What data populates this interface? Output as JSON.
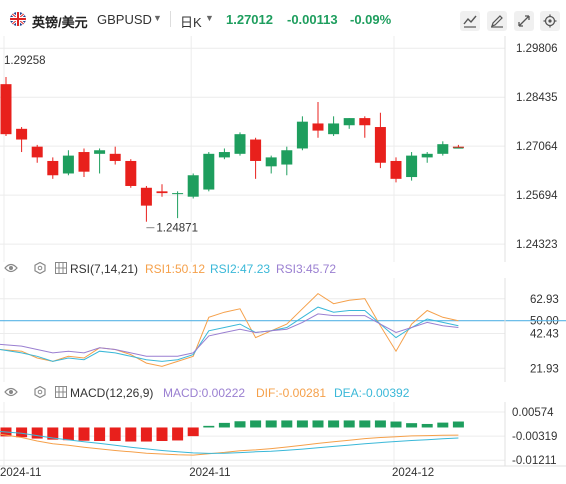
{
  "header": {
    "symbol_name": "英镑/美元",
    "symbol_code": "GBPUSD",
    "period": "日K",
    "price": "1.27012",
    "change": "-0.00113",
    "change_pct": "-0.09%"
  },
  "colors": {
    "up": "#1e9e5e",
    "down": "#e8201c",
    "rsi1": "#f5a04a",
    "rsi2": "#3ab8d8",
    "rsi3": "#9a7fd1",
    "dif": "#f5a04a",
    "dea": "#3ab8d8",
    "macd": "#9a7fd1"
  },
  "chart_data": [
    {
      "type": "candlestick",
      "title": "",
      "y_ticks": [
        "1.29806",
        "1.28435",
        "1.27064",
        "1.25694",
        "1.24323"
      ],
      "ylim": [
        1.2399,
        1.2998
      ],
      "annotations": {
        "high_label": "1.29258",
        "low_label": "1.24871"
      },
      "candles": [
        {
          "o": 1.288,
          "h": 1.29,
          "l": 1.2735,
          "c": 1.274
        },
        {
          "o": 1.2755,
          "h": 1.276,
          "l": 1.269,
          "c": 1.2725
        },
        {
          "o": 1.2705,
          "h": 1.271,
          "l": 1.266,
          "c": 1.2675
        },
        {
          "o": 1.2665,
          "h": 1.2675,
          "l": 1.2615,
          "c": 1.2625
        },
        {
          "o": 1.263,
          "h": 1.2695,
          "l": 1.2625,
          "c": 1.268
        },
        {
          "o": 1.269,
          "h": 1.27,
          "l": 1.262,
          "c": 1.2635
        },
        {
          "o": 1.2685,
          "h": 1.27,
          "l": 1.263,
          "c": 1.2695
        },
        {
          "o": 1.2685,
          "h": 1.2705,
          "l": 1.2655,
          "c": 1.2665
        },
        {
          "o": 1.2665,
          "h": 1.267,
          "l": 1.259,
          "c": 1.2595
        },
        {
          "o": 1.259,
          "h": 1.2595,
          "l": 1.2495,
          "c": 1.254
        },
        {
          "o": 1.258,
          "h": 1.26,
          "l": 1.2565,
          "c": 1.2575
        },
        {
          "o": 1.2575,
          "h": 1.258,
          "l": 1.2505,
          "c": 1.2575
        },
        {
          "o": 1.2565,
          "h": 1.263,
          "l": 1.256,
          "c": 1.2625
        },
        {
          "o": 1.2585,
          "h": 1.269,
          "l": 1.258,
          "c": 1.2685
        },
        {
          "o": 1.2675,
          "h": 1.27,
          "l": 1.267,
          "c": 1.269
        },
        {
          "o": 1.2685,
          "h": 1.2745,
          "l": 1.268,
          "c": 1.274
        },
        {
          "o": 1.2725,
          "h": 1.273,
          "l": 1.2615,
          "c": 1.2665
        },
        {
          "o": 1.265,
          "h": 1.268,
          "l": 1.263,
          "c": 1.2675
        },
        {
          "o": 1.2655,
          "h": 1.2705,
          "l": 1.2625,
          "c": 1.2695
        },
        {
          "o": 1.27,
          "h": 1.279,
          "l": 1.2695,
          "c": 1.2775
        },
        {
          "o": 1.277,
          "h": 1.283,
          "l": 1.273,
          "c": 1.275
        },
        {
          "o": 1.274,
          "h": 1.279,
          "l": 1.2735,
          "c": 1.277
        },
        {
          "o": 1.2765,
          "h": 1.2785,
          "l": 1.2755,
          "c": 1.2785
        },
        {
          "o": 1.2785,
          "h": 1.279,
          "l": 1.273,
          "c": 1.2765
        },
        {
          "o": 1.276,
          "h": 1.28,
          "l": 1.2645,
          "c": 1.266
        },
        {
          "o": 1.2665,
          "h": 1.2675,
          "l": 1.2605,
          "c": 1.2615
        },
        {
          "o": 1.262,
          "h": 1.269,
          "l": 1.261,
          "c": 1.268
        },
        {
          "o": 1.2675,
          "h": 1.269,
          "l": 1.266,
          "c": 1.2685
        },
        {
          "o": 1.2685,
          "h": 1.272,
          "l": 1.268,
          "c": 1.2712
        },
        {
          "o": 1.2705,
          "h": 1.271,
          "l": 1.27,
          "c": 1.2701
        }
      ]
    },
    {
      "type": "line",
      "name": "RSI(7,14,21)",
      "legend": [
        {
          "label": "RSI1:50.12"
        },
        {
          "label": "RSI2:47.23"
        },
        {
          "label": "RSI3:45.72"
        }
      ],
      "y_ticks": [
        "62.93",
        "50.00",
        "42.43",
        "21.93"
      ],
      "ylim": [
        15.0,
        74.0
      ],
      "reference_level": 50.0,
      "series": [
        {
          "name": "RSI1",
          "values": [
            33,
            32,
            28,
            26,
            29,
            28,
            34,
            33,
            30,
            25,
            23,
            26,
            29,
            52,
            55,
            57,
            40,
            44,
            48,
            57,
            66,
            60,
            62,
            63,
            47,
            32,
            48,
            56,
            52,
            50
          ]
        },
        {
          "name": "RSI2",
          "values": [
            33,
            31,
            29,
            26,
            28,
            27,
            32,
            31,
            29,
            27,
            26,
            27,
            30,
            44,
            46,
            48,
            43,
            44,
            46,
            52,
            58,
            55,
            56,
            56,
            48,
            40,
            46,
            51,
            49,
            47
          ]
        },
        {
          "name": "RSI3",
          "values": [
            36,
            35,
            33,
            31,
            32,
            31,
            34,
            33,
            31,
            29,
            29,
            29,
            31,
            41,
            43,
            45,
            43,
            44,
            45,
            49,
            54,
            53,
            53,
            53,
            48,
            43,
            46,
            49,
            47,
            46
          ]
        }
      ]
    },
    {
      "type": "bar+line",
      "name": "MACD(12,26,9)",
      "legend": [
        {
          "label": "MACD:0.00222"
        },
        {
          "label": "DIF:-0.00281"
        },
        {
          "label": "DEA:-0.00392"
        }
      ],
      "y_ticks": [
        "0.00574",
        "-0.00319",
        "-0.01211"
      ],
      "ylim": [
        -0.0135,
        0.0072
      ],
      "x_ticks": [
        {
          "index": 0,
          "label": "2024-11"
        },
        {
          "index": 12,
          "label": "2024-11"
        },
        {
          "index": 25,
          "label": "2024-12"
        }
      ],
      "macd": [
        -0.0033,
        -0.0036,
        -0.0041,
        -0.0045,
        -0.0047,
        -0.0049,
        -0.005,
        -0.005,
        -0.0052,
        -0.0052,
        -0.005,
        -0.0048,
        -0.0032,
        0.0006,
        0.0017,
        0.0023,
        0.0026,
        0.0026,
        0.0026,
        0.0026,
        0.0026,
        0.0026,
        0.0026,
        0.0026,
        0.0026,
        0.0022,
        0.0016,
        0.0013,
        0.0018,
        0.0022
      ],
      "dif": [
        -0.0025,
        -0.0037,
        -0.005,
        -0.006,
        -0.0066,
        -0.0073,
        -0.0079,
        -0.0085,
        -0.009,
        -0.0095,
        -0.0098,
        -0.0101,
        -0.0102,
        -0.0097,
        -0.0092,
        -0.0086,
        -0.0083,
        -0.0078,
        -0.0072,
        -0.0066,
        -0.0059,
        -0.0053,
        -0.0047,
        -0.0041,
        -0.0037,
        -0.0034,
        -0.0031,
        -0.003,
        -0.0029,
        -0.0028
      ],
      "dea": [
        -0.0015,
        -0.0021,
        -0.003,
        -0.0039,
        -0.0046,
        -0.0053,
        -0.0059,
        -0.0066,
        -0.0073,
        -0.0079,
        -0.0085,
        -0.009,
        -0.0094,
        -0.0096,
        -0.0095,
        -0.0093,
        -0.009,
        -0.0088,
        -0.0084,
        -0.008,
        -0.0075,
        -0.007,
        -0.0065,
        -0.006,
        -0.0056,
        -0.0052,
        -0.0048,
        -0.0045,
        -0.0042,
        -0.0039
      ]
    }
  ]
}
